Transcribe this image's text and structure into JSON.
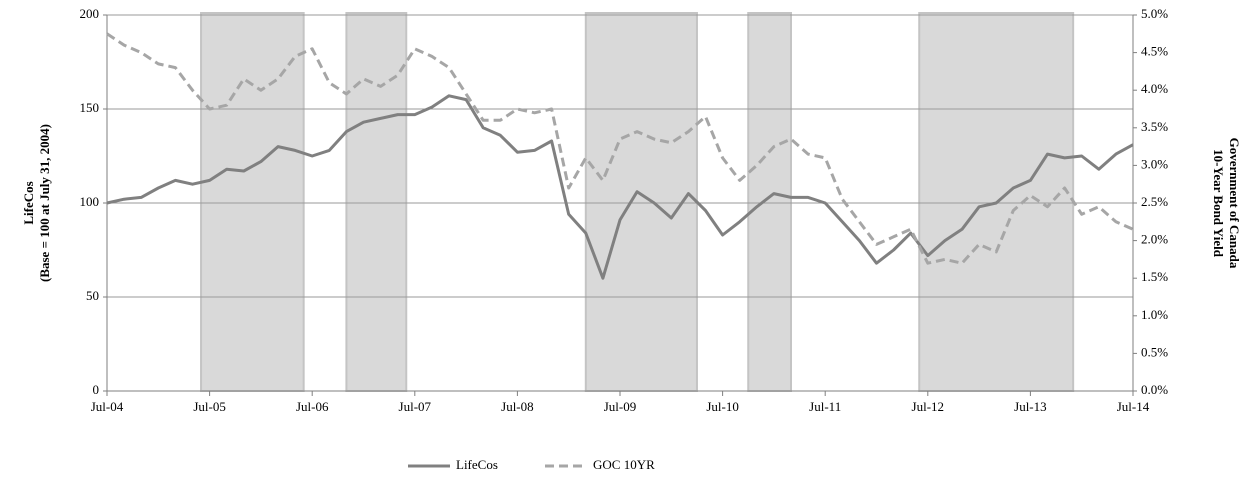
{
  "chart_data": {
    "type": "line",
    "x": [
      0,
      2,
      4,
      6,
      8,
      10,
      12,
      14,
      16,
      18,
      20,
      22,
      24,
      26,
      28,
      30,
      32,
      34,
      36,
      38,
      40,
      42,
      44,
      46,
      48,
      50,
      52,
      54,
      56,
      58,
      60,
      62,
      64,
      66,
      68,
      70,
      72,
      74,
      76,
      78,
      80,
      82,
      84,
      86,
      88,
      90,
      92,
      94,
      96,
      98,
      100,
      102,
      104,
      106,
      108,
      110,
      112,
      114,
      116,
      118,
      120
    ],
    "xlim": [
      0,
      120
    ],
    "xticks": [
      {
        "value": 0,
        "label": "Jul-04"
      },
      {
        "value": 12,
        "label": "Jul-05"
      },
      {
        "value": 24,
        "label": "Jul-06"
      },
      {
        "value": 36,
        "label": "Jul-07"
      },
      {
        "value": 48,
        "label": "Jul-08"
      },
      {
        "value": 60,
        "label": "Jul-09"
      },
      {
        "value": 72,
        "label": "Jul-10"
      },
      {
        "value": 84,
        "label": "Jul-11"
      },
      {
        "value": 96,
        "label": "Jul-12"
      },
      {
        "value": 108,
        "label": "Jul-13"
      },
      {
        "value": 120,
        "label": "Jul-14"
      }
    ],
    "ylabel": [
      "LifeCos",
      "(Base = 100 at July 31, 2004)"
    ],
    "y2label": [
      "Government of Canada",
      "10-Year Bond Yield"
    ],
    "ylim": [
      0,
      200
    ],
    "yticks": [
      0,
      50,
      100,
      150,
      200
    ],
    "y2lim": [
      0,
      5
    ],
    "y2ticks": [
      {
        "value": 0,
        "label": "0.0%"
      },
      {
        "value": 0.5,
        "label": "0.5%"
      },
      {
        "value": 1,
        "label": "1.0%"
      },
      {
        "value": 1.5,
        "label": "1.5%"
      },
      {
        "value": 2,
        "label": "2.0%"
      },
      {
        "value": 2.5,
        "label": "2.5%"
      },
      {
        "value": 3,
        "label": "3.0%"
      },
      {
        "value": 3.5,
        "label": "3.5%"
      },
      {
        "value": 4,
        "label": "4.0%"
      },
      {
        "value": 4.5,
        "label": "4.5%"
      },
      {
        "value": 5,
        "label": "5.0%"
      }
    ],
    "grid": true,
    "shaded_periods": [
      {
        "start": 11,
        "end": 23
      },
      {
        "start": 28,
        "end": 35
      },
      {
        "start": 56,
        "end": 69
      },
      {
        "start": 75,
        "end": 80
      },
      {
        "start": 95,
        "end": 113
      }
    ],
    "shade_color": "#d9d9d9",
    "legend": "bottom",
    "series": [
      {
        "name": "LifeCos",
        "color": "#808080",
        "dashed": false,
        "values": [
          100,
          102,
          103,
          108,
          112,
          110,
          112,
          118,
          117,
          122,
          130,
          128,
          125,
          128,
          138,
          143,
          145,
          147,
          147,
          151,
          157,
          155,
          140,
          136,
          127,
          128,
          133,
          94,
          84,
          60,
          91,
          106,
          100,
          92,
          105,
          96,
          83,
          90,
          98,
          105,
          103,
          103,
          100,
          90,
          80,
          68,
          75,
          84,
          72,
          80,
          86,
          98,
          100,
          108,
          112,
          126,
          124,
          125,
          118,
          126,
          131
        ]
      },
      {
        "name": "GOC 10YR",
        "color": "#a6a6a6",
        "dashed": true,
        "axis": "y2",
        "values": [
          4.75,
          4.6,
          4.5,
          4.35,
          4.3,
          4.0,
          3.75,
          3.8,
          4.15,
          4.0,
          4.15,
          4.45,
          4.55,
          4.1,
          3.95,
          4.15,
          4.05,
          4.2,
          4.55,
          4.45,
          4.3,
          3.95,
          3.6,
          3.6,
          3.75,
          3.7,
          3.75,
          2.7,
          3.1,
          2.8,
          3.35,
          3.45,
          3.35,
          3.3,
          3.45,
          3.65,
          3.1,
          2.8,
          3.0,
          3.25,
          3.35,
          3.15,
          3.1,
          2.55,
          2.25,
          1.95,
          2.05,
          2.15,
          1.7,
          1.75,
          1.7,
          1.95,
          1.85,
          2.4,
          2.6,
          2.45,
          2.7,
          2.35,
          2.45,
          2.25,
          2.15
        ]
      }
    ]
  }
}
